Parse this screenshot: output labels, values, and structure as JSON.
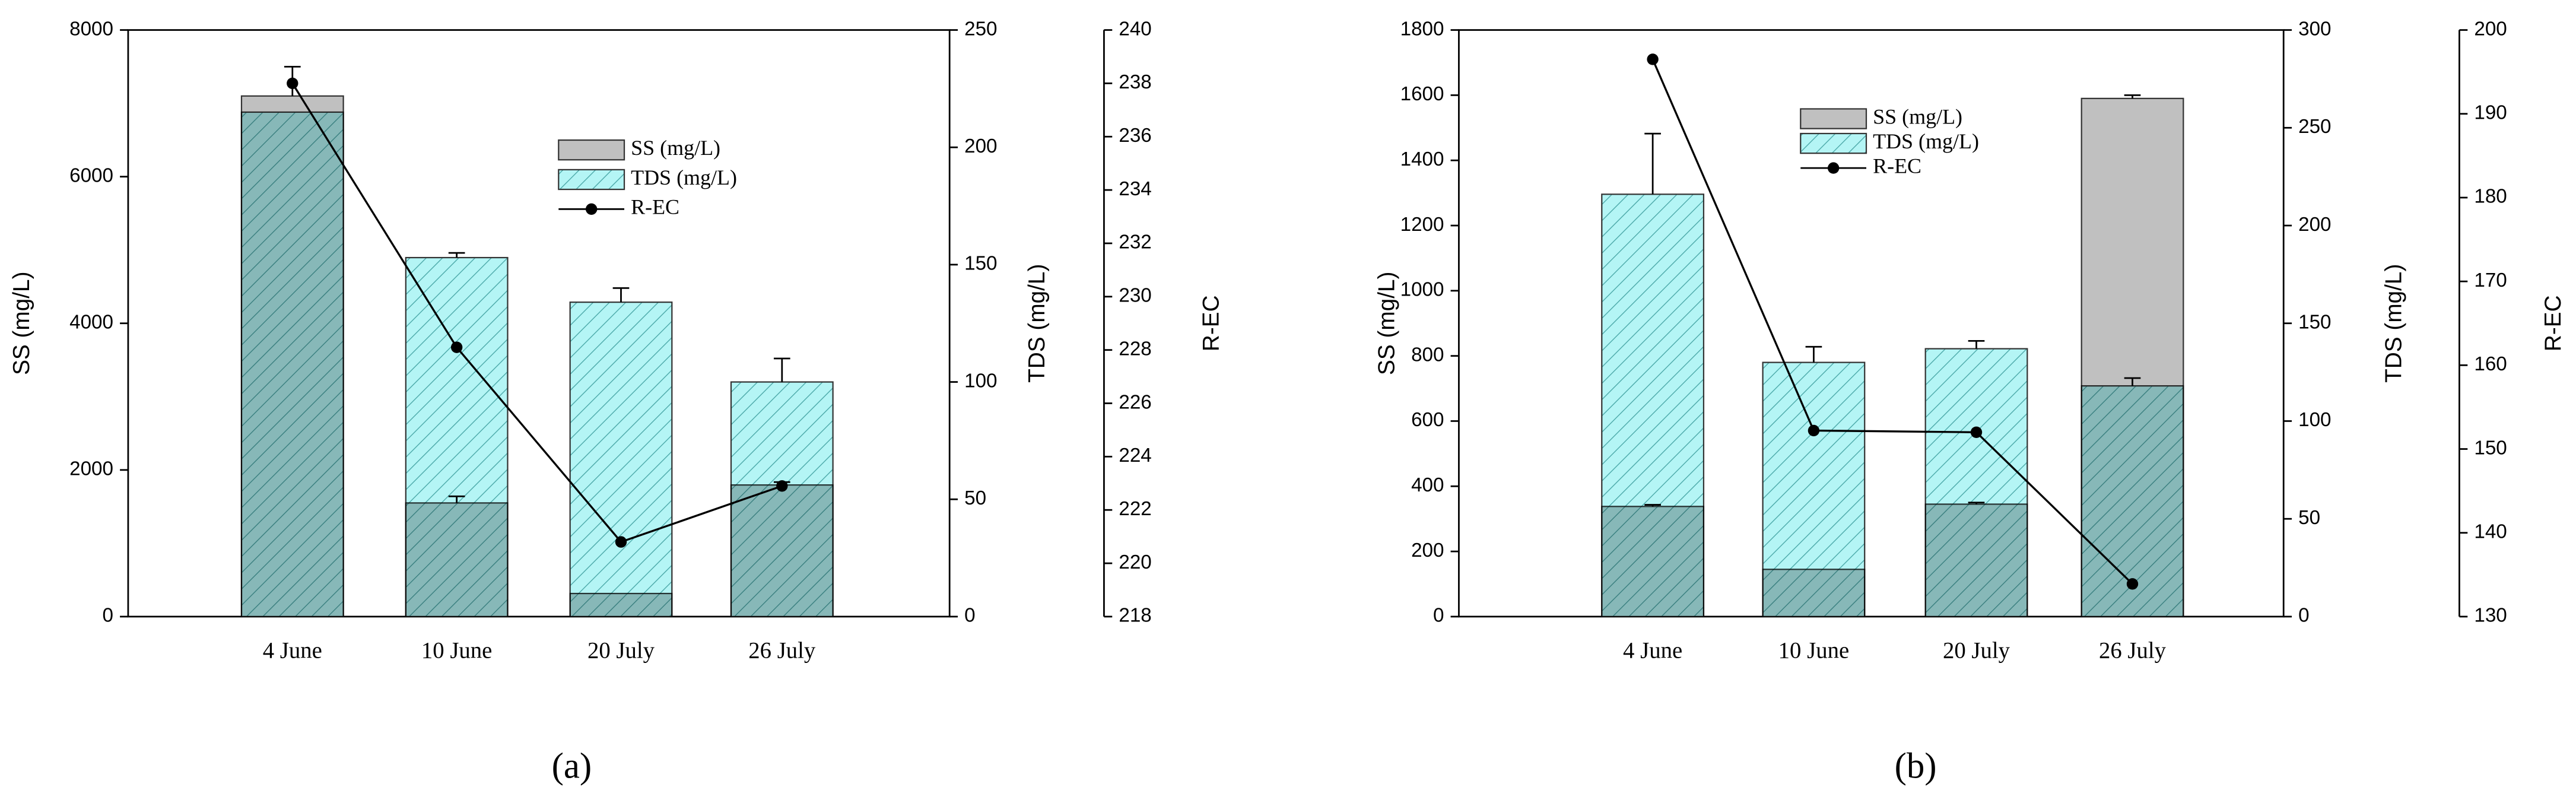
{
  "chart_data": [
    {
      "type": "bar",
      "caption": "(a)",
      "categories": [
        "4 June",
        "10 June",
        "20 July",
        "26 July"
      ],
      "y_label": "SS (mg/L)",
      "y2_label": "TDS (mg/L)",
      "y3_label": "R-EC",
      "ylim": [
        0,
        8000
      ],
      "yticks": [
        0,
        2000,
        4000,
        6000,
        8000
      ],
      "y2lim": [
        0,
        250
      ],
      "y2ticks": [
        0,
        50,
        100,
        150,
        200,
        250
      ],
      "y3lim": [
        218,
        240
      ],
      "y3ticks": [
        218,
        220,
        222,
        224,
        226,
        228,
        230,
        232,
        234,
        236,
        238,
        240
      ],
      "series": [
        {
          "name": "SS (mg/L)",
          "color": "#c0c0c0",
          "axis": "y",
          "values": [
            7100,
            1550,
            315,
            1795
          ],
          "errors": [
            400,
            90,
            null,
            40
          ]
        },
        {
          "name": "TDS (mg/L)",
          "color": "#b4f5f5",
          "axis": "y2",
          "values": [
            215,
            153,
            134,
            100
          ],
          "errors": [
            null,
            2,
            6,
            10
          ]
        },
        {
          "name": "R-EC",
          "color": "#000000",
          "axis": "y3",
          "type": "line",
          "values": [
            238.0,
            228.1,
            220.8,
            222.9
          ]
        }
      ]
    },
    {
      "type": "bar",
      "caption": "(b)",
      "categories": [
        "4 June",
        "10 June",
        "20 July",
        "26 July"
      ],
      "y_label": "SS (mg/L)",
      "y2_label": "TDS (mg/L)",
      "y3_label": "R-EC",
      "ylim": [
        0,
        1800
      ],
      "yticks": [
        0,
        200,
        400,
        600,
        800,
        1000,
        1200,
        1400,
        1600,
        1800
      ],
      "y2lim": [
        0,
        300
      ],
      "y2ticks": [
        0,
        50,
        100,
        150,
        200,
        250,
        300
      ],
      "y3lim": [
        130,
        200
      ],
      "y3ticks": [
        130,
        140,
        150,
        160,
        170,
        180,
        190,
        200
      ],
      "series": [
        {
          "name": "SS (mg/L)",
          "color": "#c0c0c0",
          "axis": "y",
          "values": [
            338,
            145,
            345,
            1590
          ],
          "errors": [
            5,
            null,
            5,
            10
          ]
        },
        {
          "name": "TDS (mg/L)",
          "color": "#b4f5f5",
          "axis": "y2",
          "values": [
            216,
            130,
            137,
            118
          ],
          "errors": [
            31,
            8,
            4,
            4
          ]
        },
        {
          "name": "R-EC",
          "color": "#000000",
          "axis": "y3",
          "type": "line",
          "values": [
            196.5,
            152.2,
            152.0,
            133.9
          ]
        }
      ]
    }
  ]
}
